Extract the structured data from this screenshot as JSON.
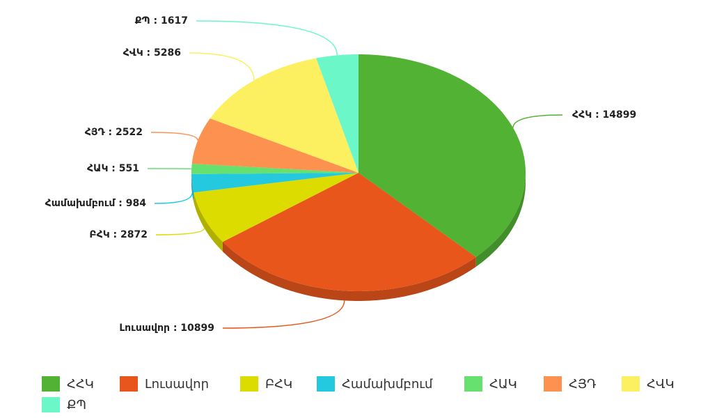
{
  "chart_data": {
    "type": "pie3d",
    "categories": [
      "ՀՀԿ",
      "Լուսավոր",
      "ԲՀԿ",
      "Համախմբում",
      "ՀԱԿ",
      "ՀՅԴ",
      "ՀՎԿ",
      "ՔՊ"
    ],
    "values": [
      14899,
      10899,
      2872,
      984,
      551,
      2522,
      5286,
      1617
    ],
    "value_labels": [
      "ՀՀԿ : 14899",
      "Լուսավոր : 10899",
      "ԲՀԿ : 2872",
      "Համախմբում : 984",
      "ՀԱԿ : 551",
      "ՀՅԴ : 2522",
      "ՀՎԿ : 5286",
      "ՔՊ : 1617"
    ],
    "colors": [
      "#52b234",
      "#e8561c",
      "#dcdc00",
      "#24c9e0",
      "#66e06e",
      "#fd9150",
      "#fdf060",
      "#6cf7c8"
    ],
    "legend": "bottom"
  }
}
